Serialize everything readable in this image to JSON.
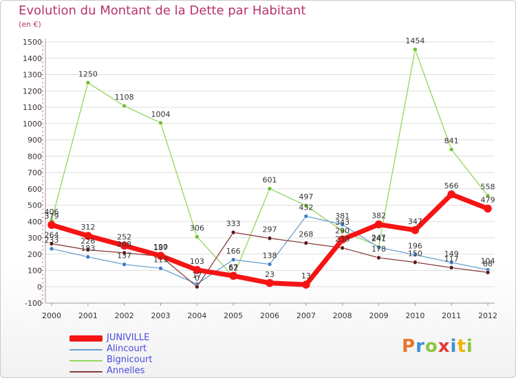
{
  "title": "Evolution du Montant de la Dette par Habitant",
  "subtitle": "(en €)",
  "logo_text": "Proxiti",
  "colors": {
    "title": "#b8336a",
    "axis": "#999999",
    "grid": "#dddddd",
    "tick_text": "#333333",
    "legend_text": "#4a4ae0",
    "minor_ticks": "#e23a3a"
  },
  "chart_data": {
    "type": "line",
    "title": "Evolution du Montant de la Dette par Habitant",
    "subtitle": "(en €)",
    "xlabel": "",
    "ylabel": "",
    "ylim": [
      -100,
      1500
    ],
    "yticks": [
      -100,
      0,
      100,
      200,
      300,
      400,
      500,
      600,
      700,
      800,
      900,
      1000,
      1100,
      1200,
      1300,
      1400,
      1500
    ],
    "x": [
      "2000",
      "2001",
      "2002",
      "2003",
      "2004",
      "2005",
      "2006",
      "2007",
      "2008",
      "2009",
      "2010",
      "2011",
      "2012"
    ],
    "grid": true,
    "legend_position": "bottom-left",
    "series": [
      {
        "name": "Bignicourt",
        "color": "#94d45a",
        "marker": "#6fbf2f",
        "width": 1.3,
        "values": [
          406,
          1250,
          1108,
          1004,
          306,
          62,
          601,
          497,
          343,
          247,
          1454,
          841,
          558
        ]
      },
      {
        "name": "Alincourt",
        "color": "#6a9fd0",
        "marker": "#3a7fc4",
        "width": 1.3,
        "values": [
          233,
          183,
          137,
          113,
          17,
          166,
          138,
          432,
          381,
          241,
          196,
          149,
          104
        ]
      },
      {
        "name": "Annelles",
        "color": "#8a3a3a",
        "marker": "#5e1a1a",
        "width": 1.3,
        "values": [
          264,
          226,
          208,
          187,
          0,
          333,
          297,
          268,
          238,
          178,
          150,
          117,
          88
        ]
      },
      {
        "name": "JUNIVILLE",
        "color": "#f51414",
        "marker": "#f51414",
        "width": 7,
        "values": [
          379,
          312,
          252,
          190,
          103,
          67,
          23,
          13,
          290,
          382,
          347,
          566,
          479
        ]
      }
    ],
    "point_labels": [
      {
        "series": "Bignicourt",
        "values": [
          "406",
          "1250",
          "1108",
          "1004",
          "306",
          "62",
          "601",
          "497",
          "343",
          "247",
          "1454",
          "841",
          "558"
        ]
      },
      {
        "series": "Alincourt",
        "values": [
          "233",
          "183",
          "137",
          "113",
          "17",
          "166",
          "138",
          "432",
          "381",
          "241",
          "196",
          "149",
          "104"
        ]
      },
      {
        "series": "Annelles",
        "values": [
          "264",
          "226",
          "208",
          "187",
          "0",
          "333",
          "297",
          "268",
          "238",
          "178",
          "150",
          "117",
          "88"
        ]
      },
      {
        "series": "JUNIVILLE",
        "values": [
          "379",
          "312",
          "252",
          "190",
          "103",
          "67",
          "23",
          "13",
          "290",
          "382",
          "347",
          "566",
          "479"
        ]
      }
    ]
  },
  "legend": [
    {
      "label": "JUNIVILLE",
      "color": "#f51414",
      "thickness": 9
    },
    {
      "label": "Alincourt",
      "color": "#6a9fd0",
      "thickness": 2
    },
    {
      "label": "Bignicourt",
      "color": "#94d45a",
      "thickness": 2
    },
    {
      "label": "Annelles",
      "color": "#8a3a3a",
      "thickness": 2
    }
  ]
}
